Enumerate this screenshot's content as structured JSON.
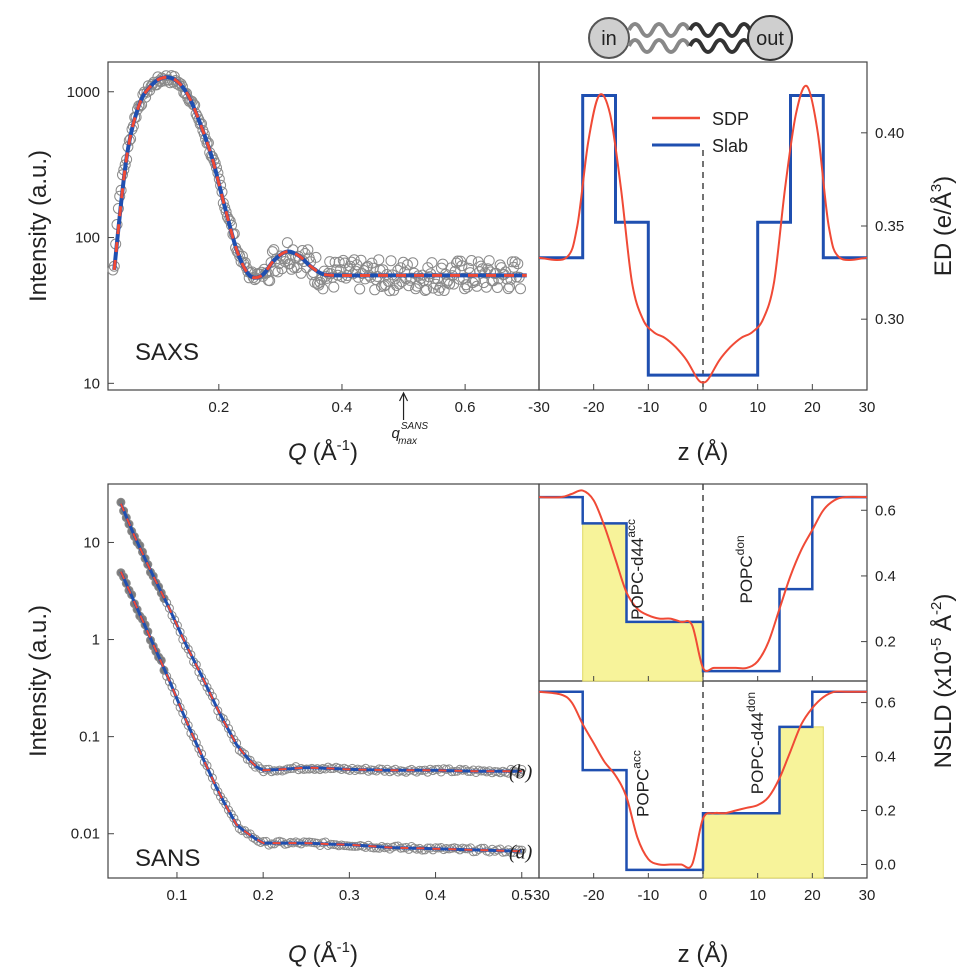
{
  "schematic": {
    "in_label": "in",
    "out_label": "out"
  },
  "chart_data": [
    {
      "id": "saxs",
      "type": "scatter",
      "panel_label": "SAXS",
      "xlabel_var": "Q",
      "xlabel_unit": "(Å",
      "xlabel_exp": "-1",
      "xlabel_close": ")",
      "ylabel": "Intensity (a.u.)",
      "xlim": [
        0.02,
        0.72
      ],
      "ylim": [
        9,
        1600
      ],
      "yscale": "log",
      "xticks": [
        "0.2",
        "0.4",
        "0.6"
      ],
      "yticks": [
        "10",
        "100",
        "1000"
      ],
      "annotation": {
        "text": "q",
        "sup": "SANS",
        "sub": "max",
        "x": 0.5
      },
      "series": [
        {
          "kind": "points",
          "color": "#8a8a8a",
          "x": [
            0.03,
            0.05,
            0.07,
            0.09,
            0.11,
            0.13,
            0.15,
            0.17,
            0.19,
            0.21,
            0.23,
            0.25,
            0.27,
            0.29,
            0.31,
            0.33,
            0.35,
            0.37,
            0.4,
            0.45,
            0.5,
            0.55,
            0.6,
            0.65,
            0.7
          ],
          "y": [
            60,
            350,
            800,
            1100,
            1250,
            1200,
            950,
            600,
            340,
            160,
            80,
            55,
            55,
            70,
            80,
            75,
            63,
            56,
            55,
            55,
            55,
            55,
            55,
            55,
            55
          ]
        },
        {
          "kind": "line",
          "style": "dashed",
          "color": "#1f4fb0",
          "x": [
            0.03,
            0.05,
            0.07,
            0.09,
            0.11,
            0.13,
            0.15,
            0.17,
            0.19,
            0.21,
            0.23,
            0.25,
            0.27,
            0.29,
            0.31,
            0.33,
            0.35,
            0.37,
            0.4,
            0.45,
            0.5,
            0.55,
            0.6,
            0.65,
            0.7
          ],
          "y": [
            60,
            350,
            800,
            1100,
            1250,
            1200,
            950,
            600,
            340,
            160,
            80,
            55,
            55,
            70,
            80,
            75,
            63,
            56,
            55,
            55,
            55,
            55,
            55,
            55,
            55
          ]
        }
      ]
    },
    {
      "id": "ed",
      "type": "line",
      "xlabel": "z (Å)",
      "ylabel_main": "ED (e/Å",
      "ylabel_exp": "3",
      "ylabel_close": ")",
      "xlim": [
        -30,
        30
      ],
      "ylim": [
        0.262,
        0.438
      ],
      "xticks": [
        "-30",
        "-20",
        "-10",
        "0",
        "10",
        "20",
        "30"
      ],
      "yticks": [
        "0.30",
        "0.35",
        "0.40"
      ],
      "legend": {
        "position": "top-center",
        "entries": [
          "SDP",
          "Slab"
        ]
      },
      "series": [
        {
          "name": "SDP",
          "color": "#f04a36",
          "x": [
            -30,
            -25,
            -23,
            -21,
            -19,
            -17,
            -15,
            -13,
            -11,
            -9,
            -7,
            -5,
            -3,
            -1,
            0,
            1,
            3,
            5,
            7,
            9,
            11,
            13,
            15,
            17,
            19,
            21,
            23,
            25,
            30
          ],
          "y": [
            0.333,
            0.333,
            0.35,
            0.395,
            0.42,
            0.41,
            0.37,
            0.32,
            0.3,
            0.293,
            0.29,
            0.285,
            0.278,
            0.268,
            0.266,
            0.268,
            0.278,
            0.285,
            0.29,
            0.293,
            0.3,
            0.32,
            0.37,
            0.41,
            0.425,
            0.4,
            0.35,
            0.333,
            0.333
          ]
        },
        {
          "name": "Slab",
          "color": "#1f4fb0",
          "x": [
            -30,
            -22,
            -22,
            -16,
            -16,
            -10,
            -10,
            10,
            10,
            16,
            16,
            22,
            22,
            30
          ],
          "y": [
            0.333,
            0.333,
            0.42,
            0.42,
            0.352,
            0.352,
            0.27,
            0.27,
            0.352,
            0.352,
            0.42,
            0.42,
            0.333,
            0.333
          ]
        }
      ]
    },
    {
      "id": "sans",
      "type": "scatter",
      "panel_label": "SANS",
      "xlabel_var": "Q",
      "xlabel_unit": "(Å",
      "xlabel_exp": "-1",
      "xlabel_close": ")",
      "ylabel": "Intensity (a.u.)",
      "xlim": [
        0.02,
        0.52
      ],
      "ylim": [
        0.0035,
        40
      ],
      "yscale": "log",
      "xticks": [
        "0.1",
        "0.2",
        "0.3",
        "0.4",
        "0.5"
      ],
      "yticks": [
        "0.01",
        "0.1",
        "1",
        "10"
      ],
      "curve_labels": [
        "(b)",
        "(a)"
      ],
      "series": [
        {
          "name": "(b)",
          "x": [
            0.035,
            0.05,
            0.07,
            0.09,
            0.11,
            0.13,
            0.15,
            0.17,
            0.19,
            0.2,
            0.22,
            0.25,
            0.28,
            0.3,
            0.35,
            0.4,
            0.45,
            0.5
          ],
          "y": [
            25,
            12,
            5,
            2.2,
            0.9,
            0.4,
            0.17,
            0.08,
            0.05,
            0.045,
            0.046,
            0.048,
            0.047,
            0.046,
            0.045,
            0.045,
            0.044,
            0.044
          ]
        },
        {
          "name": "(a)",
          "x": [
            0.035,
            0.05,
            0.07,
            0.09,
            0.11,
            0.13,
            0.15,
            0.17,
            0.19,
            0.2,
            0.22,
            0.25,
            0.28,
            0.3,
            0.35,
            0.4,
            0.45,
            0.5
          ],
          "y": [
            5,
            2.5,
            1.0,
            0.4,
            0.15,
            0.06,
            0.025,
            0.012,
            0.009,
            0.008,
            0.008,
            0.008,
            0.0078,
            0.0077,
            0.0072,
            0.007,
            0.0068,
            0.0066
          ]
        }
      ]
    },
    {
      "id": "nsld",
      "type": "line",
      "xlabel": "z (Å)",
      "ylabel_main": "NSLD (x10",
      "ylabel_exp1": "-5",
      "ylabel_mid": " Å",
      "ylabel_exp2": "-2",
      "ylabel_close": ")",
      "xlim": [
        -30,
        30
      ],
      "xticks": [
        "-30",
        "-20",
        "-10",
        "0",
        "10",
        "20",
        "30"
      ],
      "panels": [
        {
          "ylim": [
            0.08,
            0.68
          ],
          "yticks": [
            "0.2",
            "0.4",
            "0.6"
          ],
          "labels": [
            {
              "main": "POPC-d44",
              "sup": "acc",
              "x": -11,
              "y": 0.42
            },
            {
              "main": "POPC",
              "sup": "don",
              "x": 9,
              "y": 0.42
            }
          ],
          "fill": {
            "from": -22,
            "to": 0,
            "x": [
              -22,
              -14,
              -14,
              0
            ],
            "y": [
              0.56,
              0.56,
              0.26,
              0.26
            ]
          },
          "series": [
            {
              "name": "SDP",
              "x": [
                -30,
                -26,
                -24,
                -22,
                -20,
                -18,
                -16,
                -14,
                -12,
                -10,
                -8,
                -6,
                -4,
                -2,
                0,
                2,
                4,
                6,
                8,
                10,
                12,
                14,
                16,
                18,
                20,
                22,
                24,
                26,
                30
              ],
              "y": [
                0.64,
                0.64,
                0.65,
                0.66,
                0.63,
                0.55,
                0.45,
                0.35,
                0.3,
                0.28,
                0.27,
                0.27,
                0.26,
                0.25,
                0.12,
                0.12,
                0.12,
                0.12,
                0.12,
                0.14,
                0.2,
                0.3,
                0.4,
                0.48,
                0.54,
                0.6,
                0.63,
                0.64,
                0.64
              ]
            },
            {
              "name": "Slab",
              "x": [
                -30,
                -22,
                -22,
                -14,
                -14,
                0,
                0,
                14,
                14,
                20,
                20,
                30
              ],
              "y": [
                0.64,
                0.64,
                0.56,
                0.56,
                0.26,
                0.26,
                0.11,
                0.11,
                0.36,
                0.36,
                0.64,
                0.64
              ]
            }
          ]
        },
        {
          "ylim": [
            -0.05,
            0.68
          ],
          "yticks": [
            "0.0",
            "0.2",
            "0.4",
            "0.6"
          ],
          "labels": [
            {
              "main": "POPC",
              "sup": "acc",
              "x": -10,
              "y": 0.3
            },
            {
              "main": "POPC-d44",
              "sup": "don",
              "x": 11,
              "y": 0.45
            }
          ],
          "fill": {
            "from": 0,
            "to": 22,
            "x": [
              0,
              14,
              14,
              22
            ],
            "y": [
              0.19,
              0.19,
              0.51,
              0.51
            ]
          },
          "series": [
            {
              "name": "SDP",
              "x": [
                -30,
                -26,
                -24,
                -22,
                -20,
                -18,
                -16,
                -14,
                -12,
                -10,
                -8,
                -6,
                -4,
                -2,
                0,
                2,
                4,
                6,
                8,
                10,
                12,
                14,
                16,
                18,
                20,
                22,
                24,
                26,
                30
              ],
              "y": [
                0.64,
                0.63,
                0.6,
                0.52,
                0.45,
                0.38,
                0.33,
                0.25,
                0.1,
                0.02,
                0.0,
                0.0,
                0.0,
                0.0,
                0.17,
                0.19,
                0.19,
                0.2,
                0.21,
                0.22,
                0.25,
                0.32,
                0.42,
                0.52,
                0.58,
                0.62,
                0.64,
                0.64,
                0.64
              ]
            },
            {
              "name": "Slab",
              "x": [
                -30,
                -22,
                -22,
                -16,
                -16,
                -14,
                -14,
                0,
                0,
                14,
                14,
                20,
                20,
                30
              ],
              "y": [
                0.64,
                0.64,
                0.35,
                0.35,
                0.35,
                0.35,
                -0.02,
                -0.02,
                0.19,
                0.19,
                0.51,
                0.51,
                0.64,
                0.64
              ]
            }
          ]
        }
      ]
    }
  ]
}
